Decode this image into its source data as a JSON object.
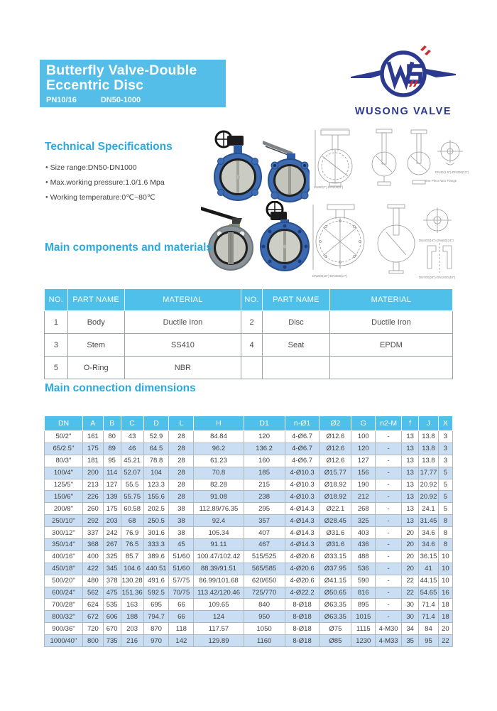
{
  "header": {
    "title_line1": "Butterfly Valve-Double",
    "title_line2": "Eccentric Disc",
    "pn": "PN10/16",
    "dn": "DN50-1000",
    "brand": "WUSONG VALVE",
    "monogram": "WS"
  },
  "colors": {
    "banner_blue": "#55BEE8",
    "heading_blue": "#2BAAE2",
    "table_header_blue": "#4FC0EA",
    "alt_row_blue": "#C9DEF2",
    "logo_navy": "#2B3A8E",
    "logo_red": "#CE2B37"
  },
  "technical": {
    "heading": "Technical Specifications",
    "bullets": [
      "Size range:DN50-DN1000",
      "Max.working pressure:1.0/1.6 Mpa",
      "Working temperature:0℃~80℃"
    ]
  },
  "drawings": {
    "captions": [
      {
        "text": "DN50(2\")-DN200(8\")"
      },
      {
        "text": "One Piece W/o Flange"
      },
      {
        "text": "DN40(1.5\")-DN300(12\")"
      },
      {
        "text": "DN250(10\")-DN350(14\")"
      },
      {
        "text": "DN400(16\")-DN600(24\")"
      },
      {
        "text": "DN700(28\")-DN1000(40\")"
      }
    ]
  },
  "components": {
    "heading": "Main components and materials",
    "headers": [
      "NO.",
      "PART NAME",
      "MATERIAL",
      "NO.",
      "PART NAME",
      "MATERIAL"
    ],
    "rows": [
      [
        "1",
        "Body",
        "Ductile Iron",
        "2",
        "Disc",
        "Ductile Iron"
      ],
      [
        "3",
        "Stem",
        "SS410",
        "4",
        "Seat",
        "EPDM"
      ],
      [
        "5",
        "O-Ring",
        "NBR",
        "",
        "",
        ""
      ]
    ]
  },
  "dimensions": {
    "heading": "Main connection dimensions",
    "headers": [
      "DN",
      "A",
      "B",
      "C",
      "D",
      "L",
      "H",
      "D1",
      "n-Ø1",
      "Ø2",
      "G",
      "n2-M",
      "f",
      "J",
      "X"
    ],
    "rows": [
      [
        "50/2''",
        "161",
        "80",
        "43",
        "52.9",
        "28",
        "84.84",
        "120",
        "4-Ø6.7",
        "Ø12.6",
        "100",
        "-",
        "13",
        "13.8",
        "3"
      ],
      [
        "65/2.5''",
        "175",
        "89",
        "46",
        "64.5",
        "28",
        "96.2",
        "136.2",
        "4-Ø6.7",
        "Ø12.6",
        "120",
        "-",
        "13",
        "13.8",
        "3"
      ],
      [
        "80/3''",
        "181",
        "95",
        "45.21",
        "78.8",
        "28",
        "61.23",
        "160",
        "4-Ø6.7",
        "Ø12.6",
        "127",
        "-",
        "13",
        "13.8",
        "3"
      ],
      [
        "100/4''",
        "200",
        "114",
        "52.07",
        "104",
        "28",
        "70.8",
        "185",
        "4-Ø10.3",
        "Ø15.77",
        "156",
        "-",
        "13",
        "17.77",
        "5"
      ],
      [
        "125/5''",
        "213",
        "127",
        "55.5",
        "123.3",
        "28",
        "82.28",
        "215",
        "4-Ø10.3",
        "Ø18.92",
        "190",
        "-",
        "13",
        "20.92",
        "5"
      ],
      [
        "150/6''",
        "226",
        "139",
        "55.75",
        "155.6",
        "28",
        "91.08",
        "238",
        "4-Ø10.3",
        "Ø18.92",
        "212",
        "-",
        "13",
        "20.92",
        "5"
      ],
      [
        "200/8''",
        "260",
        "175",
        "60.58",
        "202.5",
        "38",
        "112.89/76.35",
        "295",
        "4-Ø14.3",
        "Ø22.1",
        "268",
        "-",
        "13",
        "24.1",
        "5"
      ],
      [
        "250/10''",
        "292",
        "203",
        "68",
        "250.5",
        "38",
        "92.4",
        "357",
        "4-Ø14.3",
        "Ø28.45",
        "325",
        "-",
        "13",
        "31.45",
        "8"
      ],
      [
        "300/12''",
        "337",
        "242",
        "76.9",
        "301.6",
        "38",
        "105.34",
        "407",
        "4-Ø14.3",
        "Ø31.6",
        "403",
        "-",
        "20",
        "34.6",
        "8"
      ],
      [
        "350/14''",
        "368",
        "267",
        "76.5",
        "333.3",
        "45",
        "91.11",
        "467",
        "4-Ø14.3",
        "Ø31.6",
        "436",
        "-",
        "20",
        "34.6",
        "8"
      ],
      [
        "400/16''",
        "400",
        "325",
        "85.7",
        "389.6",
        "51/60",
        "100.47/102.42",
        "515/525",
        "4-Ø20.6",
        "Ø33.15",
        "488",
        "-",
        "20",
        "36.15",
        "10"
      ],
      [
        "450/18''",
        "422",
        "345",
        "104.6",
        "440.51",
        "51/60",
        "88.39/91.51",
        "565/585",
        "4-Ø20.6",
        "Ø37.95",
        "536",
        "-",
        "20",
        "41",
        "10"
      ],
      [
        "500/20''",
        "480",
        "378",
        "130.28",
        "491.6",
        "57/75",
        "86.99/101.68",
        "620/650",
        "4-Ø20.6",
        "Ø41.15",
        "590",
        "-",
        "22",
        "44.15",
        "10"
      ],
      [
        "600/24''",
        "562",
        "475",
        "151.36",
        "592.5",
        "70/75",
        "113.42/120.46",
        "725/770",
        "4-Ø22.2",
        "Ø50.65",
        "816",
        "-",
        "22",
        "54.65",
        "16"
      ],
      [
        "700/28''",
        "624",
        "535",
        "163",
        "695",
        "66",
        "109.65",
        "840",
        "8-Ø18",
        "Ø63.35",
        "895",
        "-",
        "30",
        "71.4",
        "18"
      ],
      [
        "800/32''",
        "672",
        "606",
        "188",
        "794.7",
        "66",
        "124",
        "950",
        "8-Ø18",
        "Ø63.35",
        "1015",
        "-",
        "30",
        "71.4",
        "18"
      ],
      [
        "900/36''",
        "720",
        "670",
        "203",
        "870",
        "118",
        "117.57",
        "1050",
        "8-Ø18",
        "Ø75",
        "1115",
        "4-M30",
        "34",
        "84",
        "20"
      ],
      [
        "1000/40''",
        "800",
        "735",
        "216",
        "970",
        "142",
        "129.89",
        "1160",
        "8-Ø18",
        "Ø85",
        "1230",
        "4-M33",
        "35",
        "95",
        "22"
      ]
    ]
  }
}
